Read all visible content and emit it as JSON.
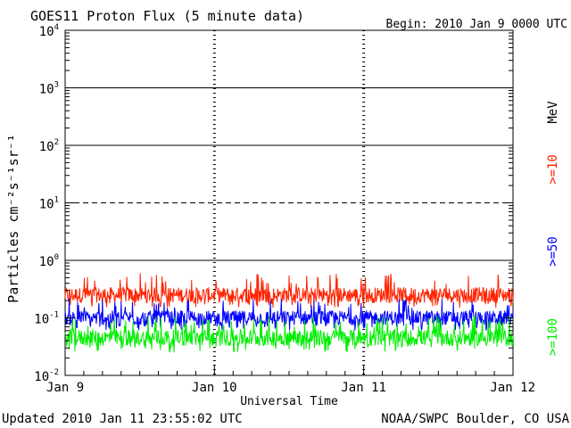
{
  "chart_data": {
    "type": "line",
    "title": "GOES11 Proton Flux (5 minute data)",
    "begin_label": "Begin: 2010 Jan 9 0000 UTC",
    "xlabel": "Universal Time",
    "ylabel": "Particles cm⁻²s⁻¹sr⁻¹",
    "y_scale": "log",
    "ylim": [
      0.01,
      10000
    ],
    "y_ticks": [
      {
        "base": "10",
        "exp": "4"
      },
      {
        "base": "10",
        "exp": "3"
      },
      {
        "base": "10",
        "exp": "2"
      },
      {
        "base": "10",
        "exp": "1"
      },
      {
        "base": "10",
        "exp": "0"
      },
      {
        "base": "10",
        "exp": "-1"
      },
      {
        "base": "10",
        "exp": "-2"
      }
    ],
    "x_ticks": [
      "Jan 9",
      "Jan 10",
      "Jan 11",
      "Jan 12"
    ],
    "xlim_days": [
      0,
      3
    ],
    "reference_lines": [
      {
        "value": 1000,
        "style": "solid"
      },
      {
        "value": 100,
        "style": "solid"
      },
      {
        "value": 10,
        "style": "dashed"
      },
      {
        "value": 1,
        "style": "solid"
      }
    ],
    "unit_label": "MeV",
    "series": [
      {
        "name": ">=10",
        "color": "#ff2200",
        "typical_value": 0.25,
        "range": [
          0.15,
          0.6
        ]
      },
      {
        "name": ">=50",
        "color": "#0000ff",
        "typical_value": 0.1,
        "range": [
          0.06,
          0.22
        ]
      },
      {
        "name": ">=100",
        "color": "#00ee00",
        "typical_value": 0.045,
        "range": [
          0.025,
          0.11
        ]
      }
    ]
  },
  "footer": {
    "updated": "Updated 2010 Jan 11 23:55:02 UTC",
    "source": "NOAA/SWPC Boulder, CO USA"
  }
}
